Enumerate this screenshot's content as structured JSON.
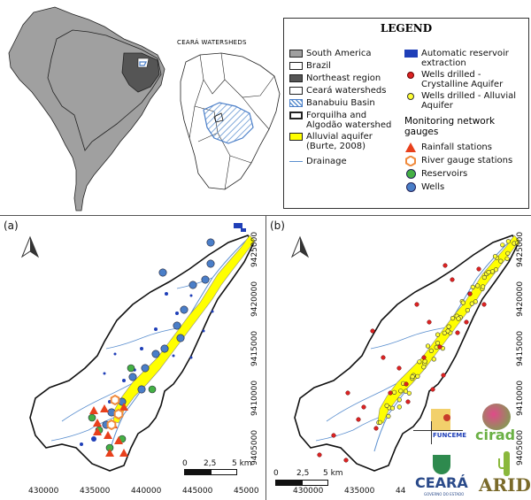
{
  "inset_label": "CEARÁ WATERSHEDS",
  "legend": {
    "title": "LEGEND",
    "col1": [
      {
        "label": "South America",
        "sym": "sw-grey"
      },
      {
        "label": "Brazil",
        "sym": "sw-white"
      },
      {
        "label": "Northeast region",
        "sym": "sw-dark"
      },
      {
        "label": "Ceará watersheds",
        "sym": "sw-white"
      },
      {
        "label": "Banabuiu Basin",
        "sym": "sw-hatch"
      },
      {
        "label": "Forquilha and Algodão watershed",
        "sym": "sw-bold"
      },
      {
        "label": "Alluvial aquifer (Burte, 2008)",
        "sym": "sw-yellow"
      },
      {
        "label": "Drainage",
        "sym": "line-blue"
      }
    ],
    "col2": [
      {
        "label": "Automatic reservoir extraction",
        "sym": "sw-blue"
      },
      {
        "label": "Wells drilled - Crystalline Aquifer",
        "sym": "dot-red"
      },
      {
        "label": "Wells drilled - Alluvial Aquifer",
        "sym": "dot-yellow"
      }
    ],
    "monitoring_title": "Monitoring network gauges",
    "monitoring": [
      {
        "label": "Rainfall stations",
        "sym": "tri-red"
      },
      {
        "label": "River gauge stations",
        "sym": "hex-orange"
      },
      {
        "label": "Reservoirs",
        "sym": "dot-green"
      },
      {
        "label": "Wells",
        "sym": "dot-bluewell"
      }
    ]
  },
  "panel_a_label": "(a)",
  "panel_b_label": "(b)",
  "x_ticks": [
    "430000",
    "435000",
    "440000",
    "445000",
    "45000"
  ],
  "x_ticks_b": [
    "430000",
    "435000",
    "44"
  ],
  "y_ticks": [
    "9425000",
    "9420000",
    "9415000",
    "9410000",
    "9405000"
  ],
  "scalebar": {
    "labels": [
      "0",
      "2,5",
      "5 km"
    ]
  },
  "logos": {
    "funceme": "FUNCEME",
    "cirad": "cirad",
    "ceara": "CEARÁ",
    "ceara_sub": "GOVERNO DO ESTADO",
    "arid": "ARID"
  },
  "colors": {
    "southamerica": "#a0a0a0",
    "northeast": "#555555",
    "drainage": "#5b8fcf",
    "alluvial": "#ffff00",
    "rainfall": "#e8401c",
    "gauge": "#f08a3c",
    "reservoir": "#44b044",
    "wells": "#4a7ec8"
  }
}
